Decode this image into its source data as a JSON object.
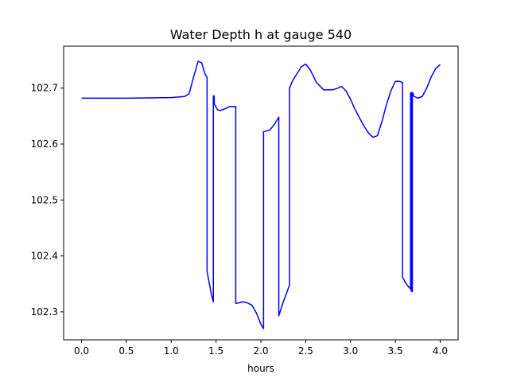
{
  "chart_data": {
    "type": "line",
    "title": "Water Depth h at gauge 540",
    "xlabel": "hours",
    "ylabel": "",
    "xlim": [
      -0.2,
      4.2
    ],
    "ylim": [
      102.25,
      102.775
    ],
    "xticks": [
      0.0,
      0.5,
      1.0,
      1.5,
      2.0,
      2.5,
      3.0,
      3.5,
      4.0
    ],
    "xtick_labels": [
      "0.0",
      "0.5",
      "1.0",
      "1.5",
      "2.0",
      "2.5",
      "3.0",
      "3.5",
      "4.0"
    ],
    "yticks": [
      102.3,
      102.4,
      102.5,
      102.6,
      102.7
    ],
    "ytick_labels": [
      "102.3",
      "102.4",
      "102.5",
      "102.6",
      "102.7"
    ],
    "grid": false,
    "series": [
      {
        "color": "#0000ff",
        "x": [
          0.0,
          0.5,
          1.0,
          1.15,
          1.2,
          1.25,
          1.3,
          1.34,
          1.38,
          1.4,
          1.4,
          1.45,
          1.47,
          1.47,
          1.48,
          1.48,
          1.5,
          1.52,
          1.55,
          1.6,
          1.65,
          1.72,
          1.72,
          1.75,
          1.8,
          1.85,
          1.9,
          1.95,
          2.0,
          2.03,
          2.03,
          2.1,
          2.15,
          2.2,
          2.2,
          2.25,
          2.32,
          2.32,
          2.35,
          2.4,
          2.45,
          2.5,
          2.55,
          2.62,
          2.7,
          2.75,
          2.8,
          2.86,
          2.9,
          2.95,
          3.0,
          3.05,
          3.1,
          3.15,
          3.2,
          3.25,
          3.3,
          3.35,
          3.4,
          3.45,
          3.5,
          3.55,
          3.58,
          3.58,
          3.63,
          3.67,
          3.67,
          3.675,
          3.675,
          3.68,
          3.68,
          3.685,
          3.685,
          3.69,
          3.69,
          3.7,
          3.7,
          3.75,
          3.8,
          3.85,
          3.9,
          3.95,
          4.0
        ],
        "y": [
          102.682,
          102.682,
          102.683,
          102.685,
          102.69,
          102.72,
          102.748,
          102.745,
          102.724,
          102.72,
          102.372,
          102.33,
          102.318,
          102.686,
          102.686,
          102.672,
          102.666,
          102.661,
          102.66,
          102.663,
          102.667,
          102.667,
          102.315,
          102.316,
          102.318,
          102.316,
          102.312,
          102.298,
          102.278,
          102.27,
          102.622,
          102.625,
          102.635,
          102.648,
          102.293,
          102.318,
          102.348,
          102.7,
          102.712,
          102.725,
          102.738,
          102.743,
          102.733,
          102.71,
          102.697,
          102.697,
          102.697,
          102.7,
          102.703,
          102.695,
          102.68,
          102.662,
          102.647,
          102.632,
          102.62,
          102.612,
          102.615,
          102.64,
          102.67,
          102.695,
          102.712,
          102.712,
          102.71,
          102.362,
          102.348,
          102.341,
          102.692,
          102.692,
          102.338,
          102.338,
          102.692,
          102.692,
          102.336,
          102.336,
          102.692,
          102.69,
          102.686,
          102.682,
          102.685,
          102.7,
          102.72,
          102.735,
          102.742
        ]
      }
    ]
  }
}
